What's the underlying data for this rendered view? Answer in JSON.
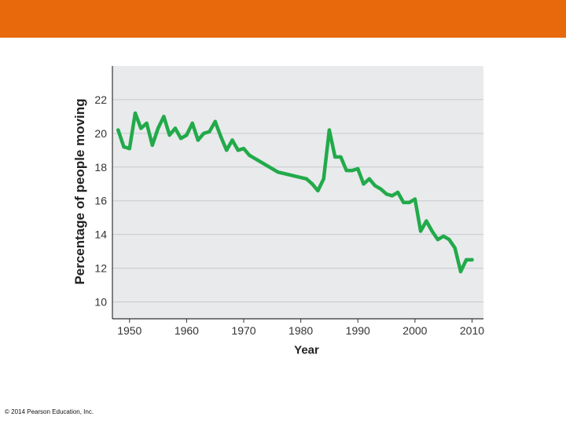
{
  "header": {
    "color": "#e8680c"
  },
  "copyright": "© 2014 Pearson Education, Inc.",
  "chart_data": {
    "type": "line",
    "title": "",
    "xlabel": "Year",
    "ylabel": "Percentage of people moving",
    "xlim": [
      1947,
      2012
    ],
    "ylim": [
      9,
      24
    ],
    "x_ticks": [
      1950,
      1960,
      1970,
      1980,
      1990,
      2000,
      2010
    ],
    "y_ticks": [
      10,
      12,
      14,
      16,
      18,
      20,
      22
    ],
    "grid": true,
    "line_color": "#22aa4a",
    "plot_background": "#e8eaec",
    "series": [
      {
        "x": [
          1948,
          1949,
          1950,
          1951,
          1952,
          1953,
          1954,
          1955,
          1956,
          1957,
          1958,
          1959,
          1960,
          1961,
          1962,
          1963,
          1964,
          1965,
          1966,
          1967,
          1968,
          1969,
          1970,
          1971,
          1976,
          1981,
          1982,
          1983,
          1984,
          1985,
          1986,
          1987,
          1988,
          1989,
          1990,
          1991,
          1992,
          1993,
          1994,
          1995,
          1996,
          1997,
          1998,
          1999,
          2000,
          2001,
          2002,
          2003,
          2004,
          2005,
          2006,
          2007,
          2008,
          2009,
          2010
        ],
        "values": [
          20.2,
          19.2,
          19.1,
          21.2,
          20.3,
          20.6,
          19.3,
          20.3,
          21.0,
          19.9,
          20.3,
          19.7,
          19.9,
          20.6,
          19.6,
          20.0,
          20.1,
          20.7,
          19.8,
          19.0,
          19.6,
          19.0,
          19.1,
          18.7,
          17.7,
          17.3,
          17.0,
          16.6,
          17.3,
          20.2,
          18.6,
          18.6,
          17.8,
          17.8,
          17.9,
          17.0,
          17.3,
          16.9,
          16.7,
          16.4,
          16.3,
          16.5,
          15.9,
          15.9,
          16.1,
          14.2,
          14.8,
          14.2,
          13.7,
          13.9,
          13.7,
          13.2,
          11.8,
          12.5,
          12.5
        ]
      }
    ]
  }
}
